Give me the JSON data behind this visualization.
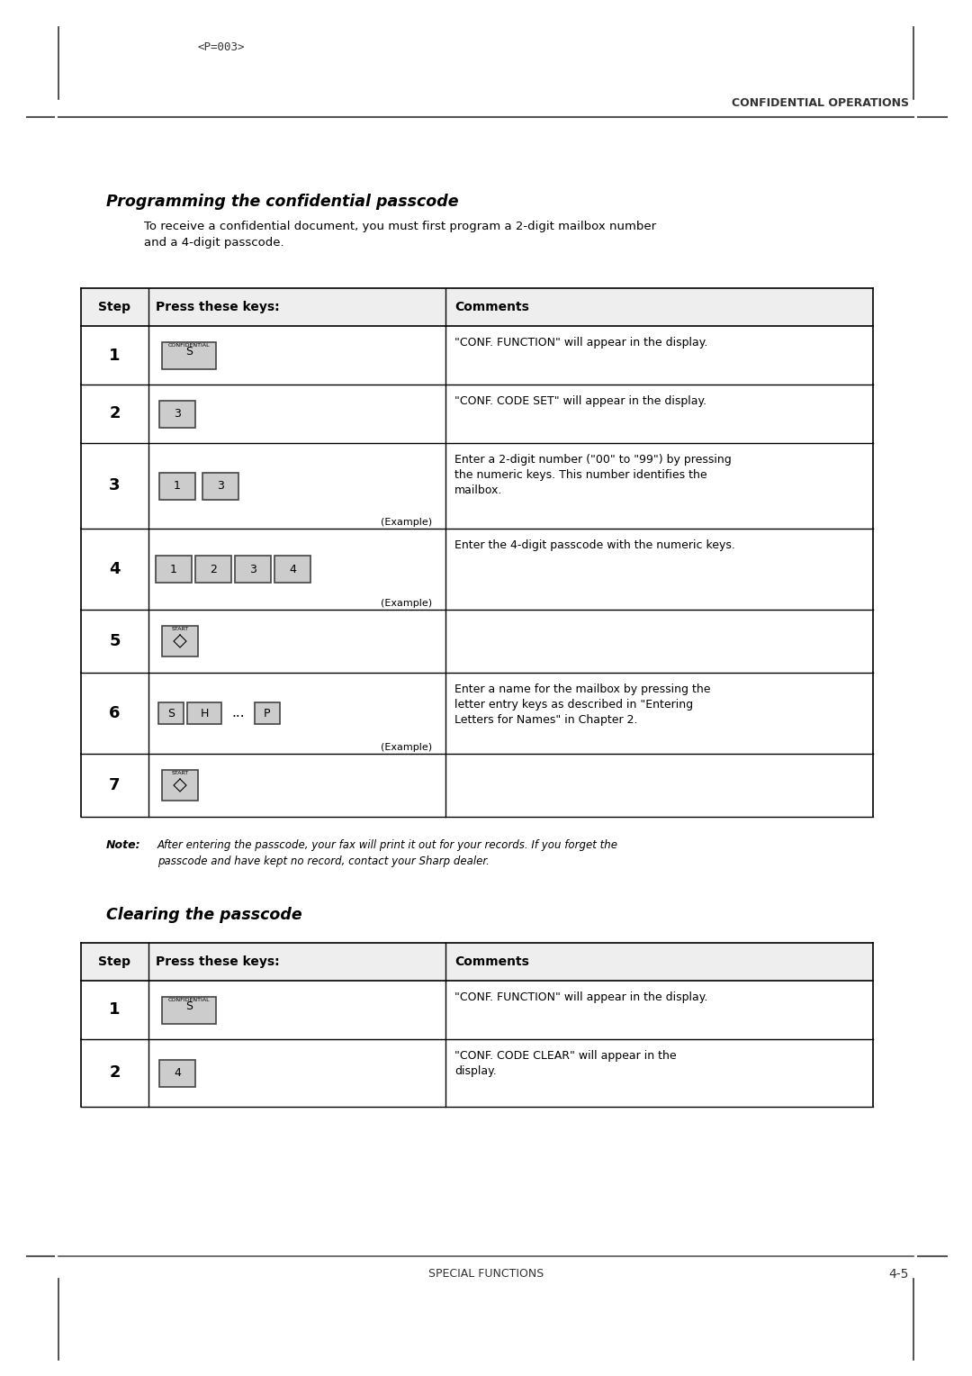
{
  "page_header": "<P=003>",
  "header_right": "CONFIDENTIAL OPERATIONS",
  "footer_center": "SPECIAL FUNCTIONS",
  "footer_right": "4-5",
  "section1_title": "Programming the confidential passcode",
  "section1_intro": "To receive a confidential document, you must first program a 2-digit mailbox number\nand a 4-digit passcode.",
  "table1_headers": [
    "Step",
    "Press these keys:",
    "Comments"
  ],
  "table1_rows": [
    {
      "step": "1",
      "comment": "\"CONF. FUNCTION\" will appear in the display.",
      "key_type": "confidential_s"
    },
    {
      "step": "2",
      "comment": "\"CONF. CODE SET\" will appear in the display.",
      "key_type": "single_3"
    },
    {
      "step": "3",
      "comment": "Enter a 2-digit number (\"00\" to \"99\") by pressing\nthe numeric keys. This number identifies the\nmailbox.",
      "key_type": "keys_1_3"
    },
    {
      "step": "4",
      "comment": "Enter the 4-digit passcode with the numeric keys.",
      "key_type": "keys_1234"
    },
    {
      "step": "5",
      "comment": "",
      "key_type": "start_button"
    },
    {
      "step": "6",
      "comment": "Enter a name for the mailbox by pressing the\nletter entry keys as described in \"Entering\nLetters for Names\" in Chapter 2.",
      "key_type": "letter_keys"
    },
    {
      "step": "7",
      "comment": "",
      "key_type": "start_button"
    }
  ],
  "note_text": "After entering the passcode, your fax will print it out for your records. If you forget the\npasscode and have kept no record, contact your Sharp dealer.",
  "section2_title": "Clearing the passcode",
  "table2_headers": [
    "Step",
    "Press these keys:",
    "Comments"
  ],
  "table2_rows": [
    {
      "step": "1",
      "comment": "\"CONF. FUNCTION\" will appear in the display.",
      "key_type": "confidential_s"
    },
    {
      "step": "2",
      "comment": "\"CONF. CODE CLEAR\" will appear in the\ndisplay.",
      "key_type": "single_4"
    }
  ],
  "bg_color": "#ffffff",
  "text_color": "#000000",
  "table_border_color": "#000000",
  "header_bg": "#e8e8e8",
  "key_bg": "#d0d0d0",
  "key_border": "#555555"
}
